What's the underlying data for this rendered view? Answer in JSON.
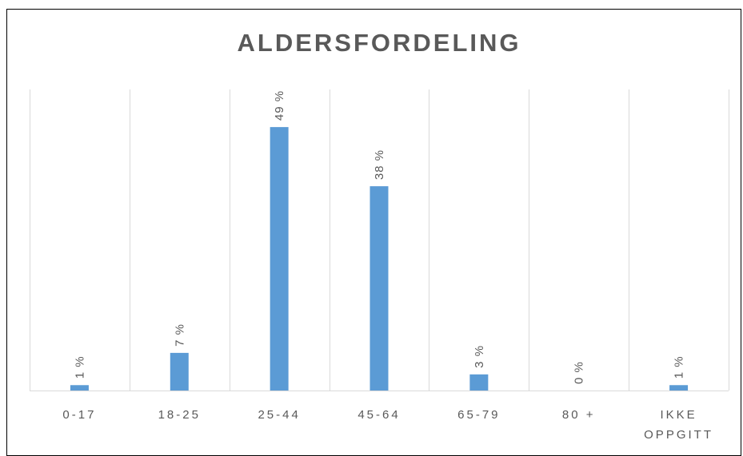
{
  "chart_data": {
    "type": "bar",
    "title": "ALDERSFORDELING",
    "categories": [
      "0-17",
      "18-25",
      "25-44",
      "45-64",
      "65-79",
      "80 +",
      "IKKE OPPGITT"
    ],
    "values": [
      1,
      7,
      49,
      38,
      3,
      0,
      1
    ],
    "data_labels": [
      "1 %",
      "7 %",
      "49 %",
      "38 %",
      "3 %",
      "0 %",
      "1 %"
    ],
    "unit": "%",
    "xlabel": "",
    "ylabel": "",
    "ylim": [
      0,
      56
    ],
    "grid": "vertical",
    "legend": "none",
    "bar_color": "#5B9BD5"
  }
}
